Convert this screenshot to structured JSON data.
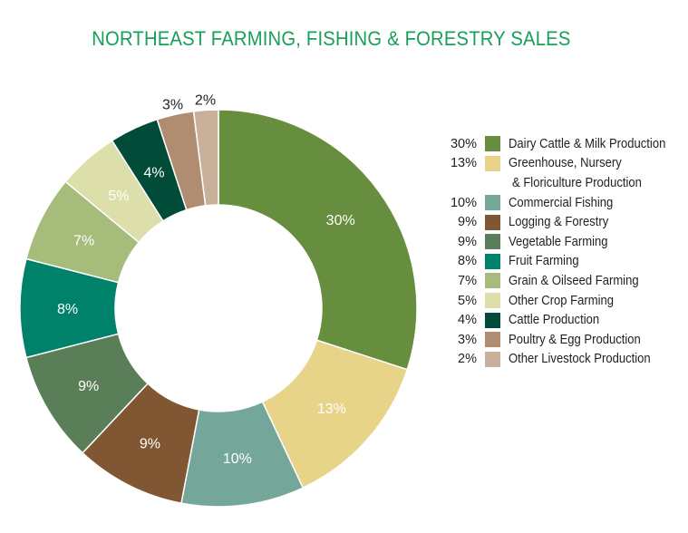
{
  "title": "NORTHEAST FARMING, FISHING & FORESTRY SALES",
  "chart_data": {
    "type": "pie",
    "subtype": "donut",
    "title": "NORTHEAST FARMING, FISHING & FORESTRY SALES",
    "unit": "%",
    "start_angle_deg": 0,
    "direction": "clockwise",
    "legend_position": "right",
    "categories": [
      "Dairy Cattle & Milk Production",
      "Greenhouse, Nursery & Floriculture Production",
      "Commercial Fishing",
      "Logging & Forestry",
      "Vegetable Farming",
      "Fruit Farming",
      "Grain & Oilseed Farming",
      "Other Crop Farming",
      "Cattle Production",
      "Poultry & Egg Production",
      "Other Livestock Production"
    ],
    "values": [
      30,
      13,
      10,
      9,
      9,
      8,
      7,
      5,
      4,
      3,
      2
    ],
    "colors": [
      "#678e3e",
      "#e8d488",
      "#74a69a",
      "#815733",
      "#5a7e57",
      "#00826a",
      "#a5bc7a",
      "#dcdfaa",
      "#004c38",
      "#b08c70",
      "#c8b09a"
    ],
    "label_colors": [
      "#ffffff",
      "#ffffff",
      "#ffffff",
      "#ffffff",
      "#ffffff",
      "#ffffff",
      "#ffffff",
      "#ffffff",
      "#ffffff",
      "#222222",
      "#222222"
    ],
    "labels_outside": [
      false,
      false,
      false,
      false,
      false,
      false,
      false,
      false,
      false,
      true,
      true
    ]
  },
  "legend": {
    "items": [
      {
        "pct": "30%",
        "label": "Dairy Cattle & Milk Production",
        "color": "#678e3e"
      },
      {
        "pct": "13%",
        "label": "Greenhouse, Nursery",
        "label_cont": "& Floriculture Production",
        "color": "#e8d488"
      },
      {
        "pct": "10%",
        "label": "Commercial Fishing",
        "color": "#74a69a"
      },
      {
        "pct": "9%",
        "label": "Logging & Forestry",
        "color": "#815733"
      },
      {
        "pct": "9%",
        "label": "Vegetable Farming",
        "color": "#5a7e57"
      },
      {
        "pct": "8%",
        "label": "Fruit Farming",
        "color": "#00826a"
      },
      {
        "pct": "7%",
        "label": "Grain & Oilseed Farming",
        "color": "#a5bc7a"
      },
      {
        "pct": "5%",
        "label": "Other Crop Farming",
        "color": "#dcdfaa"
      },
      {
        "pct": "4%",
        "label": "Cattle Production",
        "color": "#004c38"
      },
      {
        "pct": "3%",
        "label": "Poultry & Egg Production",
        "color": "#b08c70"
      },
      {
        "pct": "2%",
        "label": "Other Livestock Production",
        "color": "#c8b09a"
      }
    ]
  }
}
